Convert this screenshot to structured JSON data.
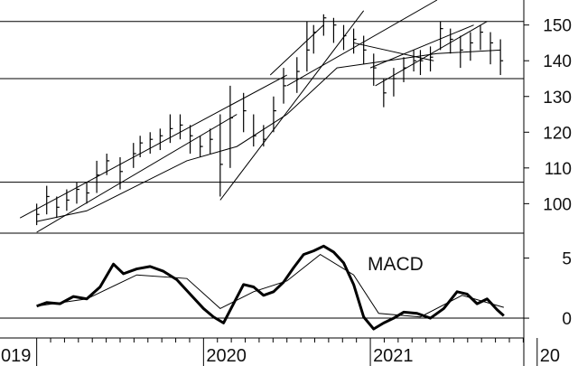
{
  "chart_data": [
    {
      "type": "candlestick",
      "panel": "price",
      "x_axis_labels": [
        "019",
        "2020",
        "2021",
        "20"
      ],
      "y_ticks": [
        100,
        110,
        120,
        130,
        140,
        150
      ],
      "ylim": [
        92,
        157
      ],
      "grid": false,
      "horizontal_levels": [
        106,
        135,
        151
      ],
      "series": [
        {
          "name": "",
          "t": [
            0.0,
            0.06,
            0.12,
            0.18,
            0.24,
            0.3,
            0.36,
            0.42,
            0.5,
            0.58,
            0.62,
            0.68,
            0.74,
            0.8,
            0.86,
            0.92,
            0.98,
            1.04,
            1.1,
            1.16,
            1.24,
            1.3,
            1.36,
            1.42,
            1.48,
            1.56,
            1.62,
            1.66,
            1.72,
            1.78,
            1.84,
            1.9,
            1.96,
            2.02,
            2.08,
            2.14,
            2.2,
            2.26,
            2.3,
            2.36,
            2.42,
            2.48,
            2.54,
            2.6,
            2.66,
            2.72,
            2.78
          ],
          "close": [
            97,
            102,
            99,
            101,
            104,
            103,
            108,
            112,
            109,
            114,
            117,
            118,
            119,
            121,
            122,
            119,
            116,
            118,
            111,
            124,
            126,
            119,
            118,
            126,
            133,
            137,
            143,
            148,
            152,
            150,
            147,
            146,
            143,
            138,
            131,
            135,
            138,
            140,
            140,
            141,
            149,
            146,
            143,
            145,
            148,
            145,
            140
          ],
          "high": [
            100,
            105,
            102,
            104,
            106,
            106,
            112,
            114,
            113,
            117,
            119,
            120,
            121,
            125,
            125,
            122,
            119,
            121,
            125,
            133,
            131,
            125,
            122,
            130,
            138,
            141,
            151,
            150,
            153,
            152,
            150,
            149,
            147,
            142,
            135,
            138,
            141,
            143,
            143,
            144,
            151,
            149,
            147,
            148,
            150,
            148,
            146
          ],
          "low": [
            94,
            97,
            96,
            98,
            100,
            100,
            103,
            108,
            104,
            110,
            113,
            114,
            115,
            117,
            118,
            114,
            113,
            114,
            102,
            110,
            120,
            116,
            116,
            120,
            128,
            131,
            137,
            142,
            147,
            145,
            143,
            142,
            139,
            133,
            127,
            130,
            134,
            137,
            136,
            137,
            143,
            142,
            138,
            140,
            143,
            139,
            136
          ]
        },
        {
          "name": "",
          "type": "line",
          "t": [
            0.0,
            0.3,
            0.6,
            0.9,
            1.2,
            1.5,
            1.8,
            2.1,
            2.4,
            2.78
          ],
          "values": [
            95,
            98,
            105,
            112,
            116,
            125,
            138,
            140,
            142,
            143
          ]
        }
      ]
    },
    {
      "type": "line",
      "panel": "macd",
      "title": "MACD",
      "y_ticks": [
        0,
        5
      ],
      "ylim": [
        -1.5,
        7
      ],
      "zero_line": true,
      "series": [
        {
          "name": "",
          "t": [
            0.0,
            0.06,
            0.14,
            0.22,
            0.3,
            0.38,
            0.46,
            0.52,
            0.6,
            0.68,
            0.76,
            0.84,
            0.92,
            1.0,
            1.06,
            1.12,
            1.18,
            1.24,
            1.3,
            1.36,
            1.42,
            1.48,
            1.54,
            1.6,
            1.66,
            1.72,
            1.78,
            1.84,
            1.9,
            1.96,
            2.02,
            2.08,
            2.14,
            2.2,
            2.28,
            2.36,
            2.44,
            2.52,
            2.58,
            2.64,
            2.7,
            2.76,
            2.8
          ],
          "values": [
            1.0,
            1.3,
            1.2,
            1.8,
            1.6,
            2.6,
            4.5,
            3.7,
            4.1,
            4.3,
            3.9,
            3.2,
            2.0,
            0.8,
            0.1,
            -0.4,
            1.2,
            2.8,
            2.6,
            1.9,
            2.2,
            3.0,
            4.2,
            5.3,
            5.6,
            6.0,
            5.5,
            4.6,
            2.8,
            0.1,
            -0.9,
            -0.4,
            0.0,
            0.5,
            0.4,
            0.0,
            0.8,
            2.2,
            2.0,
            1.2,
            1.6,
            0.7,
            0.2
          ]
        },
        {
          "name": "",
          "t": [
            0.0,
            0.3,
            0.6,
            0.9,
            1.1,
            1.3,
            1.5,
            1.7,
            1.9,
            2.05,
            2.3,
            2.55,
            2.8
          ],
          "values": [
            1.0,
            1.6,
            3.6,
            3.3,
            0.8,
            2.2,
            3.1,
            5.3,
            3.6,
            0.4,
            0.1,
            1.9,
            0.9
          ]
        }
      ]
    }
  ]
}
